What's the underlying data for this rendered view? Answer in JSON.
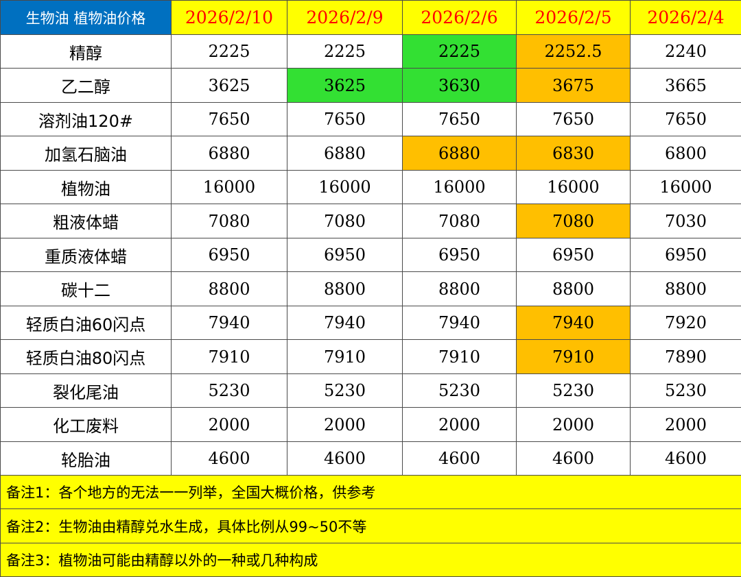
{
  "table": {
    "corner_label": "生物油 植物油价格",
    "dates": [
      "2026/2/10",
      "2026/2/9",
      "2026/2/6",
      "2026/2/5",
      "2026/2/4"
    ],
    "rows": [
      {
        "name": "精醇",
        "values": [
          "2225",
          "2225",
          "2225",
          "2252.5",
          "2240"
        ]
      },
      {
        "name": "乙二醇",
        "values": [
          "3625",
          "3625",
          "3630",
          "3675",
          "3665"
        ]
      },
      {
        "name": "溶剂油120#",
        "values": [
          "7650",
          "7650",
          "7650",
          "7650",
          "7650"
        ]
      },
      {
        "name": "加氢石脑油",
        "values": [
          "6880",
          "6880",
          "6880",
          "6830",
          "6800"
        ]
      },
      {
        "name": "植物油",
        "values": [
          "16000",
          "16000",
          "16000",
          "16000",
          "16000"
        ]
      },
      {
        "name": "粗液体蜡",
        "values": [
          "7080",
          "7080",
          "7080",
          "7080",
          "7030"
        ]
      },
      {
        "name": "重质液体蜡",
        "values": [
          "6950",
          "6950",
          "6950",
          "6950",
          "6950"
        ]
      },
      {
        "name": "碳十二",
        "values": [
          "8800",
          "8800",
          "8800",
          "8800",
          "8800"
        ]
      },
      {
        "name": "轻质白油60闪点",
        "values": [
          "7940",
          "7940",
          "7940",
          "7940",
          "7920"
        ]
      },
      {
        "name": "轻质白油80闪点",
        "values": [
          "7910",
          "7910",
          "7910",
          "7910",
          "7890"
        ]
      },
      {
        "name": "裂化尾油",
        "values": [
          "5230",
          "5230",
          "5230",
          "5230",
          "5230"
        ]
      },
      {
        "name": "化工废料",
        "values": [
          "2000",
          "2000",
          "2000",
          "2000",
          "2000"
        ]
      },
      {
        "name": "轮胎油",
        "values": [
          "4600",
          "4600",
          "4600",
          "4600",
          "4600"
        ]
      }
    ],
    "notes": [
      "备注1：各个地方的无法一一列举，全国大概价格，供参考",
      "备注2：生物油由精醇兑水生成，具体比例从99~50不等",
      "备注3：植物油可能由精醇以外的一种或几种构成"
    ]
  },
  "colors": {
    "header_corner": "#0070c0",
    "header_date_bg": "#ffff00",
    "header_date_text": "#ff0000",
    "highlight_green": "#33e033",
    "highlight_orange": "#ffbf00",
    "notes_bg": "#ffff00"
  }
}
